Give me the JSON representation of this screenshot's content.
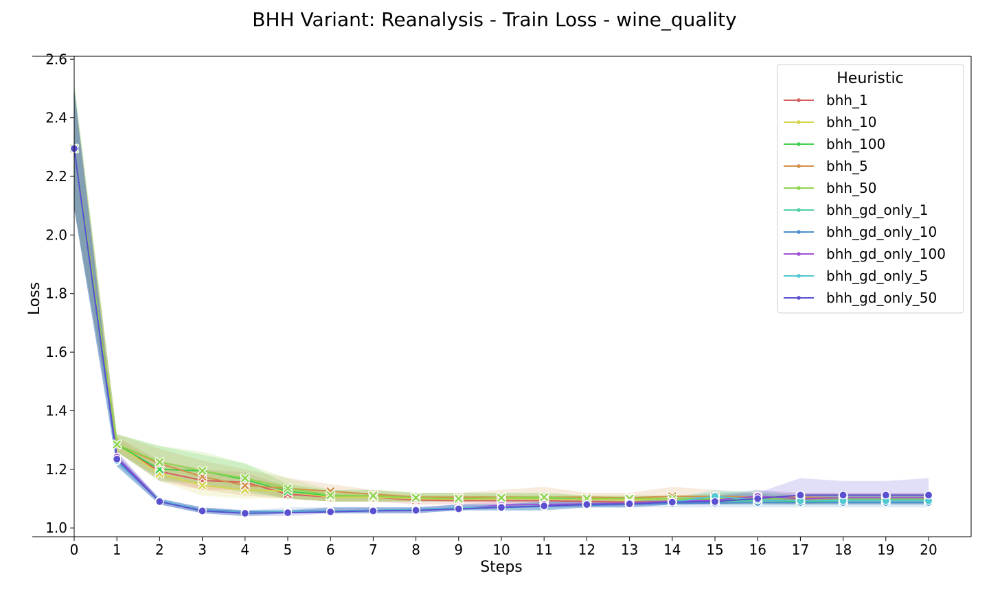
{
  "chart_data": {
    "type": "line",
    "title": "BHH Variant: Reanalysis - Train Loss - wine_quality",
    "xlabel": "Steps",
    "ylabel": "Loss",
    "xlim": [
      0,
      21
    ],
    "ylim": [
      0.97,
      2.61
    ],
    "x": [
      0,
      1,
      2,
      3,
      4,
      5,
      6,
      7,
      8,
      9,
      10,
      11,
      12,
      13,
      14,
      15,
      16,
      17,
      18,
      19,
      20
    ],
    "yticks": [
      1.0,
      1.2,
      1.4,
      1.6,
      1.8,
      2.0,
      2.2,
      2.4,
      2.6
    ],
    "legend": {
      "title": "Heuristic",
      "placement": "top-right"
    },
    "series": [
      {
        "name": "bhh_1",
        "color": "#d65f5f",
        "marker": "x",
        "values": [
          2.295,
          1.285,
          1.193,
          1.162,
          1.156,
          1.115,
          1.105,
          1.105,
          1.095,
          1.093,
          1.093,
          1.093,
          1.09,
          1.088,
          1.09,
          1.092,
          1.093,
          1.095,
          1.095,
          1.095,
          1.095
        ],
        "band": [
          [
            2.09,
            2.5
          ],
          [
            1.26,
            1.31
          ],
          [
            1.16,
            1.23
          ],
          [
            1.13,
            1.2
          ],
          [
            1.13,
            1.19
          ],
          [
            1.1,
            1.14
          ],
          [
            1.09,
            1.12
          ],
          [
            1.09,
            1.12
          ],
          [
            1.08,
            1.11
          ],
          [
            1.08,
            1.11
          ],
          [
            1.08,
            1.11
          ],
          [
            1.08,
            1.11
          ],
          [
            1.08,
            1.1
          ],
          [
            1.08,
            1.1
          ],
          [
            1.08,
            1.1
          ],
          [
            1.08,
            1.1
          ],
          [
            1.08,
            1.1
          ],
          [
            1.08,
            1.11
          ],
          [
            1.08,
            1.11
          ],
          [
            1.08,
            1.11
          ],
          [
            1.08,
            1.11
          ]
        ]
      },
      {
        "name": "bhh_10",
        "color": "#d5d54f",
        "marker": "x",
        "values": [
          2.295,
          1.285,
          1.185,
          1.145,
          1.13,
          1.125,
          1.105,
          1.105,
          1.1,
          1.098,
          1.1,
          1.1,
          1.098,
          1.095,
          1.098,
          1.1,
          1.1,
          1.1,
          1.1,
          1.1,
          1.1
        ],
        "band": [
          [
            2.09,
            2.5
          ],
          [
            1.26,
            1.31
          ],
          [
            1.16,
            1.22
          ],
          [
            1.11,
            1.19
          ],
          [
            1.1,
            1.17
          ],
          [
            1.1,
            1.15
          ],
          [
            1.09,
            1.12
          ],
          [
            1.09,
            1.12
          ],
          [
            1.09,
            1.11
          ],
          [
            1.09,
            1.11
          ],
          [
            1.09,
            1.11
          ],
          [
            1.09,
            1.11
          ],
          [
            1.09,
            1.11
          ],
          [
            1.08,
            1.11
          ],
          [
            1.08,
            1.11
          ],
          [
            1.09,
            1.11
          ],
          [
            1.09,
            1.11
          ],
          [
            1.09,
            1.11
          ],
          [
            1.09,
            1.11
          ],
          [
            1.09,
            1.11
          ],
          [
            1.09,
            1.11
          ]
        ]
      },
      {
        "name": "bhh_100",
        "color": "#3fcf4f",
        "marker": "x",
        "values": [
          2.295,
          1.285,
          1.2,
          1.195,
          1.165,
          1.125,
          1.11,
          1.11,
          1.103,
          1.103,
          1.103,
          1.103,
          1.1,
          1.1,
          1.1,
          1.098,
          1.095,
          1.09,
          1.093,
          1.093,
          1.093
        ],
        "band": [
          [
            2.09,
            2.52
          ],
          [
            1.26,
            1.32
          ],
          [
            1.16,
            1.28
          ],
          [
            1.15,
            1.25
          ],
          [
            1.12,
            1.22
          ],
          [
            1.1,
            1.15
          ],
          [
            1.09,
            1.13
          ],
          [
            1.09,
            1.13
          ],
          [
            1.09,
            1.12
          ],
          [
            1.09,
            1.12
          ],
          [
            1.09,
            1.12
          ],
          [
            1.09,
            1.12
          ],
          [
            1.09,
            1.11
          ],
          [
            1.09,
            1.11
          ],
          [
            1.09,
            1.11
          ],
          [
            1.08,
            1.12
          ],
          [
            1.08,
            1.12
          ],
          [
            1.08,
            1.1
          ],
          [
            1.08,
            1.1
          ],
          [
            1.08,
            1.1
          ],
          [
            1.08,
            1.1
          ]
        ]
      },
      {
        "name": "bhh_5",
        "color": "#d2914a",
        "marker": "x",
        "values": [
          2.295,
          1.285,
          1.22,
          1.175,
          1.145,
          1.135,
          1.125,
          1.115,
          1.105,
          1.105,
          1.105,
          1.105,
          1.105,
          1.103,
          1.108,
          1.108,
          1.105,
          1.105,
          1.103,
          1.103,
          1.103
        ],
        "band": [
          [
            2.09,
            2.5
          ],
          [
            1.26,
            1.32
          ],
          [
            1.17,
            1.27
          ],
          [
            1.13,
            1.23
          ],
          [
            1.11,
            1.2
          ],
          [
            1.1,
            1.17
          ],
          [
            1.09,
            1.15
          ],
          [
            1.09,
            1.13
          ],
          [
            1.09,
            1.12
          ],
          [
            1.09,
            1.12
          ],
          [
            1.09,
            1.13
          ],
          [
            1.09,
            1.14
          ],
          [
            1.09,
            1.12
          ],
          [
            1.09,
            1.12
          ],
          [
            1.09,
            1.14
          ],
          [
            1.09,
            1.13
          ],
          [
            1.09,
            1.12
          ],
          [
            1.09,
            1.12
          ],
          [
            1.09,
            1.12
          ],
          [
            1.09,
            1.12
          ],
          [
            1.09,
            1.12
          ]
        ]
      },
      {
        "name": "bhh_50",
        "color": "#8fd44f",
        "marker": "x",
        "values": [
          2.295,
          1.285,
          1.225,
          1.195,
          1.17,
          1.135,
          1.112,
          1.11,
          1.103,
          1.1,
          1.103,
          1.105,
          1.1,
          1.1,
          1.1,
          1.1,
          1.1,
          1.1,
          1.1,
          1.1,
          1.1
        ],
        "band": [
          [
            2.09,
            2.52
          ],
          [
            1.26,
            1.32
          ],
          [
            1.17,
            1.28
          ],
          [
            1.15,
            1.26
          ],
          [
            1.13,
            1.22
          ],
          [
            1.1,
            1.17
          ],
          [
            1.09,
            1.13
          ],
          [
            1.09,
            1.13
          ],
          [
            1.09,
            1.12
          ],
          [
            1.09,
            1.12
          ],
          [
            1.09,
            1.12
          ],
          [
            1.09,
            1.12
          ],
          [
            1.09,
            1.11
          ],
          [
            1.09,
            1.11
          ],
          [
            1.09,
            1.11
          ],
          [
            1.09,
            1.11
          ],
          [
            1.09,
            1.11
          ],
          [
            1.09,
            1.11
          ],
          [
            1.09,
            1.11
          ],
          [
            1.09,
            1.11
          ],
          [
            1.09,
            1.11
          ]
        ]
      },
      {
        "name": "bhh_gd_only_1",
        "color": "#4fd0a0",
        "marker": "o",
        "values": [
          2.295,
          1.23,
          1.093,
          1.06,
          1.052,
          1.055,
          1.057,
          1.06,
          1.062,
          1.068,
          1.072,
          1.075,
          1.08,
          1.082,
          1.088,
          1.09,
          1.093,
          1.093,
          1.095,
          1.095,
          1.095
        ],
        "band": [
          [
            2.09,
            2.5
          ],
          [
            1.21,
            1.25
          ],
          [
            1.08,
            1.1
          ],
          [
            1.05,
            1.07
          ],
          [
            1.04,
            1.06
          ],
          [
            1.05,
            1.06
          ],
          [
            1.05,
            1.07
          ],
          [
            1.05,
            1.07
          ],
          [
            1.05,
            1.07
          ],
          [
            1.06,
            1.08
          ],
          [
            1.06,
            1.08
          ],
          [
            1.06,
            1.09
          ],
          [
            1.07,
            1.09
          ],
          [
            1.07,
            1.09
          ],
          [
            1.08,
            1.1
          ],
          [
            1.08,
            1.12
          ],
          [
            1.08,
            1.13
          ],
          [
            1.08,
            1.11
          ],
          [
            1.08,
            1.11
          ],
          [
            1.08,
            1.11
          ],
          [
            1.08,
            1.11
          ]
        ]
      },
      {
        "name": "bhh_gd_only_10",
        "color": "#4a8fd0",
        "marker": "o",
        "values": [
          2.295,
          1.228,
          1.092,
          1.062,
          1.055,
          1.057,
          1.058,
          1.06,
          1.063,
          1.068,
          1.07,
          1.073,
          1.077,
          1.08,
          1.083,
          1.085,
          1.087,
          1.087,
          1.087,
          1.087,
          1.087
        ],
        "band": [
          [
            2.09,
            2.5
          ],
          [
            1.21,
            1.25
          ],
          [
            1.08,
            1.1
          ],
          [
            1.05,
            1.07
          ],
          [
            1.05,
            1.06
          ],
          [
            1.05,
            1.07
          ],
          [
            1.05,
            1.07
          ],
          [
            1.05,
            1.07
          ],
          [
            1.05,
            1.07
          ],
          [
            1.06,
            1.08
          ],
          [
            1.06,
            1.08
          ],
          [
            1.06,
            1.09
          ],
          [
            1.07,
            1.09
          ],
          [
            1.07,
            1.09
          ],
          [
            1.07,
            1.1
          ],
          [
            1.07,
            1.1
          ],
          [
            1.07,
            1.1
          ],
          [
            1.07,
            1.1
          ],
          [
            1.07,
            1.1
          ],
          [
            1.07,
            1.1
          ],
          [
            1.07,
            1.1
          ]
        ]
      },
      {
        "name": "bhh_gd_only_100",
        "color": "#a04fd5",
        "marker": "o",
        "values": [
          2.295,
          1.242,
          1.093,
          1.06,
          1.052,
          1.055,
          1.057,
          1.06,
          1.062,
          1.066,
          1.078,
          1.08,
          1.082,
          1.085,
          1.09,
          1.095,
          1.108,
          1.1,
          1.103,
          1.103,
          1.103
        ],
        "band": [
          [
            2.09,
            2.5
          ],
          [
            1.22,
            1.26
          ],
          [
            1.08,
            1.1
          ],
          [
            1.05,
            1.07
          ],
          [
            1.04,
            1.06
          ],
          [
            1.05,
            1.06
          ],
          [
            1.05,
            1.07
          ],
          [
            1.05,
            1.07
          ],
          [
            1.05,
            1.07
          ],
          [
            1.06,
            1.08
          ],
          [
            1.07,
            1.09
          ],
          [
            1.07,
            1.09
          ],
          [
            1.07,
            1.1
          ],
          [
            1.07,
            1.1
          ],
          [
            1.08,
            1.1
          ],
          [
            1.08,
            1.11
          ],
          [
            1.09,
            1.13
          ],
          [
            1.08,
            1.12
          ],
          [
            1.09,
            1.12
          ],
          [
            1.09,
            1.12
          ],
          [
            1.09,
            1.12
          ]
        ]
      },
      {
        "name": "bhh_gd_only_5",
        "color": "#4fc8d0",
        "marker": "o",
        "values": [
          2.295,
          1.23,
          1.093,
          1.06,
          1.052,
          1.055,
          1.057,
          1.06,
          1.062,
          1.068,
          1.072,
          1.075,
          1.08,
          1.082,
          1.088,
          1.108,
          1.095,
          1.093,
          1.093,
          1.093,
          1.093
        ],
        "band": [
          [
            2.09,
            2.5
          ],
          [
            1.21,
            1.25
          ],
          [
            1.08,
            1.1
          ],
          [
            1.05,
            1.07
          ],
          [
            1.04,
            1.06
          ],
          [
            1.05,
            1.06
          ],
          [
            1.05,
            1.07
          ],
          [
            1.05,
            1.07
          ],
          [
            1.05,
            1.07
          ],
          [
            1.06,
            1.08
          ],
          [
            1.06,
            1.08
          ],
          [
            1.06,
            1.09
          ],
          [
            1.07,
            1.09
          ],
          [
            1.07,
            1.09
          ],
          [
            1.08,
            1.1
          ],
          [
            1.09,
            1.13
          ],
          [
            1.08,
            1.12
          ],
          [
            1.08,
            1.11
          ],
          [
            1.08,
            1.11
          ],
          [
            1.08,
            1.11
          ],
          [
            1.08,
            1.11
          ]
        ]
      },
      {
        "name": "bhh_gd_only_50",
        "color": "#5a4fd0",
        "marker": "o",
        "values": [
          2.295,
          1.235,
          1.09,
          1.058,
          1.05,
          1.052,
          1.055,
          1.058,
          1.06,
          1.065,
          1.07,
          1.075,
          1.08,
          1.082,
          1.088,
          1.09,
          1.1,
          1.112,
          1.112,
          1.112,
          1.112
        ],
        "band": [
          [
            2.09,
            2.5
          ],
          [
            1.21,
            1.26
          ],
          [
            1.08,
            1.1
          ],
          [
            1.05,
            1.07
          ],
          [
            1.04,
            1.06
          ],
          [
            1.04,
            1.06
          ],
          [
            1.05,
            1.07
          ],
          [
            1.05,
            1.07
          ],
          [
            1.05,
            1.07
          ],
          [
            1.06,
            1.08
          ],
          [
            1.06,
            1.08
          ],
          [
            1.06,
            1.09
          ],
          [
            1.07,
            1.09
          ],
          [
            1.07,
            1.09
          ],
          [
            1.08,
            1.1
          ],
          [
            1.08,
            1.11
          ],
          [
            1.08,
            1.12
          ],
          [
            1.08,
            1.17
          ],
          [
            1.08,
            1.16
          ],
          [
            1.08,
            1.16
          ],
          [
            1.08,
            1.17
          ]
        ]
      }
    ]
  }
}
